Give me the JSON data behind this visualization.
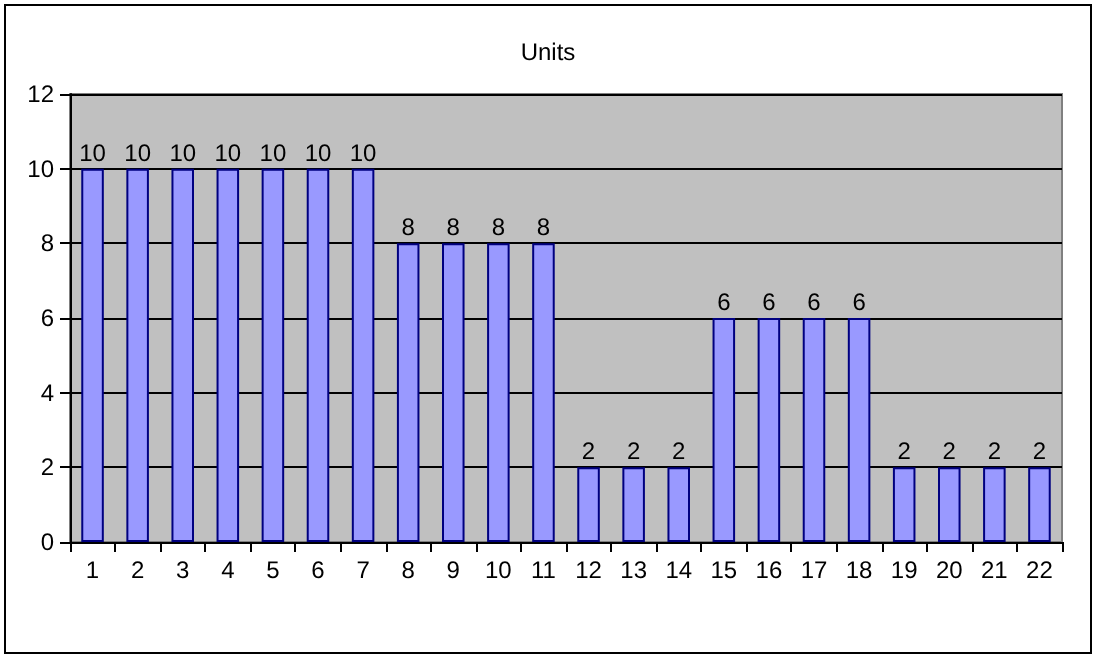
{
  "chart_data": {
    "type": "bar",
    "title": "Units",
    "categories": [
      "1",
      "2",
      "3",
      "4",
      "5",
      "6",
      "7",
      "8",
      "9",
      "10",
      "11",
      "12",
      "13",
      "14",
      "15",
      "16",
      "17",
      "18",
      "19",
      "20",
      "21",
      "22"
    ],
    "values": [
      10,
      10,
      10,
      10,
      10,
      10,
      10,
      8,
      8,
      8,
      8,
      2,
      2,
      2,
      6,
      6,
      6,
      6,
      2,
      2,
      2,
      2
    ],
    "color": "#9999ff",
    "ylim": [
      0,
      12
    ],
    "yticks": [
      0,
      2,
      4,
      6,
      8,
      10,
      12
    ],
    "grid": "y",
    "data_labels": true
  }
}
